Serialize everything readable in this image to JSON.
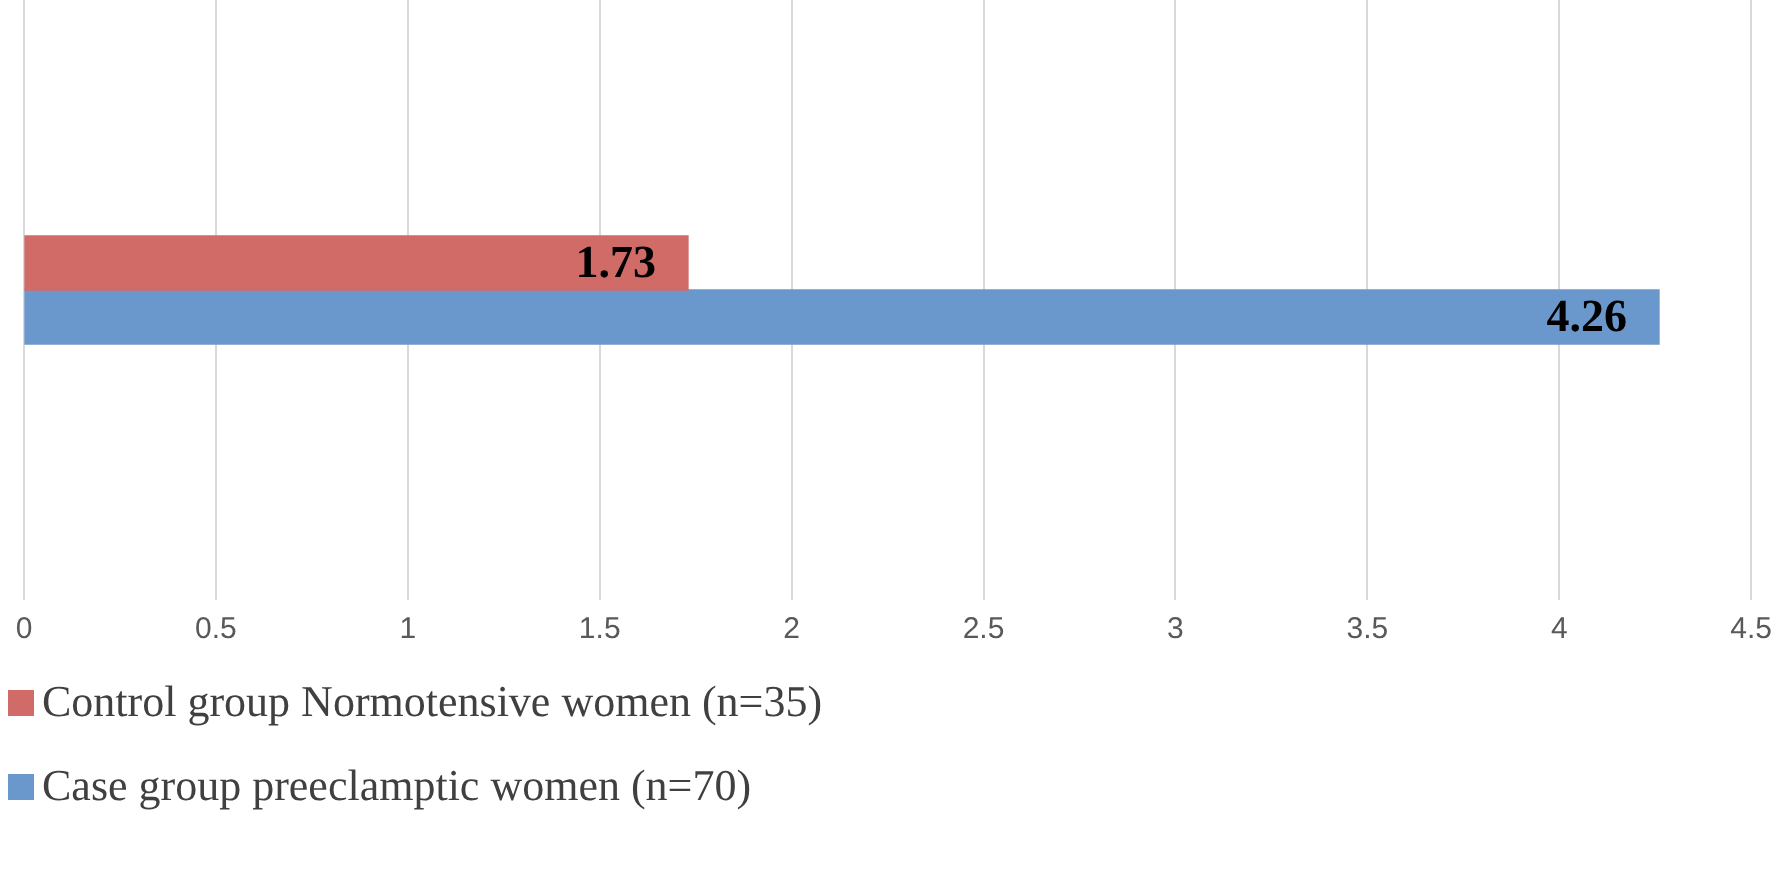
{
  "chart_data": {
    "type": "bar",
    "orientation": "horizontal",
    "categories": [
      null
    ],
    "series": [
      {
        "name": "Control group Normotensive women (n=35)",
        "color": "#d06b68",
        "values": [
          1.73
        ]
      },
      {
        "name": "Case group preeclamptic women (n=70)",
        "color": "#6a98cc",
        "values": [
          4.26
        ]
      }
    ],
    "xlim": [
      0,
      4.5
    ],
    "xticks": [
      0,
      0.5,
      1,
      1.5,
      2,
      2.5,
      3,
      3.5,
      4,
      4.5
    ],
    "grid": "x",
    "legend": "bottom",
    "data_labels": true
  }
}
